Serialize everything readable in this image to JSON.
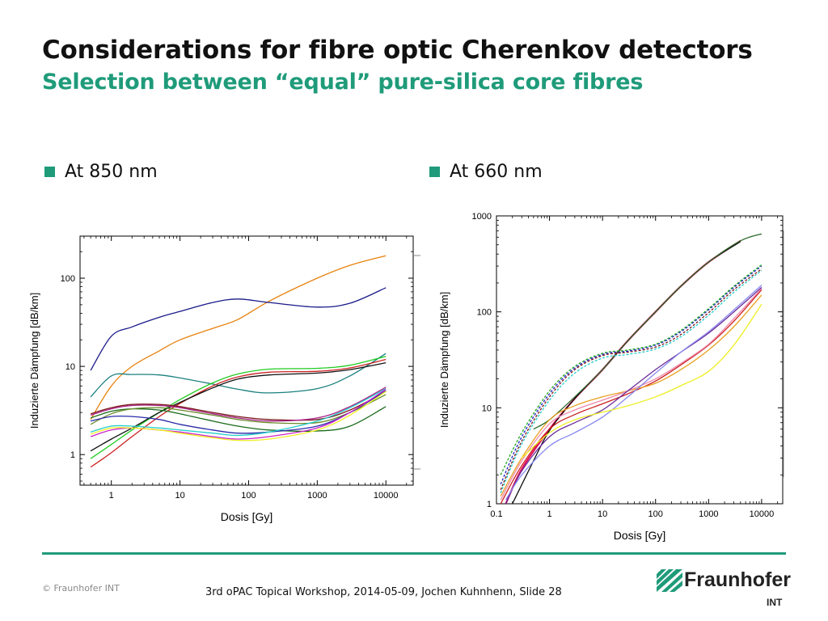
{
  "slide": {
    "title": "Considerations for fibre optic Cherenkov detectors",
    "subtitle": "Selection between “equal” pure-silica core fibres",
    "bullet_left": "At 850 nm",
    "bullet_right": "At 660 nm",
    "copyright": "© Fraunhofer INT",
    "footer": "3rd oPAC Topical Workshop, 2014-05-09, Jochen Kuhnhenn, Slide 28",
    "logo_text": "Fraunhofer",
    "logo_sub": "INT",
    "accent_color": "#1f9b7a"
  },
  "chart_data": [
    {
      "type": "line",
      "xlabel": "Dosis [Gy]",
      "ylabel": "Induzierte Dämpfung [dB/km]",
      "xscale": "log",
      "yscale": "log",
      "xlim": [
        0.35,
        25000
      ],
      "ylim": [
        0.45,
        300
      ],
      "xticks": [
        "1",
        "10",
        "100",
        "1000",
        "10000"
      ],
      "yticks": [
        "1",
        "10",
        "100"
      ],
      "legend": "right, labels not legible",
      "series": [
        {
          "color": "#e8820e",
          "x": [
            0.5,
            1,
            2,
            5,
            10,
            30,
            70,
            200,
            1000,
            3000,
            10000
          ],
          "y": [
            2.5,
            6,
            10,
            15,
            20,
            27,
            34,
            55,
            100,
            140,
            180
          ]
        },
        {
          "color": "#1a1a8a",
          "x": [
            0.5,
            1,
            2,
            5,
            10,
            30,
            70,
            200,
            1000,
            3000,
            10000
          ],
          "y": [
            9,
            22,
            28,
            36,
            42,
            53,
            58,
            53,
            47,
            52,
            78
          ]
        },
        {
          "color": "#1a8080",
          "x": [
            0.5,
            1,
            2,
            5,
            10,
            30,
            70,
            200,
            1000,
            3000,
            10000
          ],
          "y": [
            4.5,
            7.8,
            8.1,
            8,
            7.4,
            6.3,
            5.5,
            5,
            5.6,
            7.8,
            14
          ]
        },
        {
          "color": "#22cc22",
          "x": [
            0.5,
            1,
            2,
            5,
            10,
            30,
            70,
            200,
            1000,
            3000,
            10000
          ],
          "y": [
            0.9,
            1.3,
            1.9,
            3,
            4.2,
            6.5,
            8.2,
            9.3,
            9.5,
            10.3,
            13
          ]
        },
        {
          "color": "#cc2020",
          "x": [
            0.5,
            1,
            2,
            5,
            10,
            30,
            70,
            200,
            1000,
            3000,
            10000
          ],
          "y": [
            0.72,
            1.05,
            1.6,
            2.7,
            3.8,
            6,
            7.6,
            8.6,
            8.8,
            9.6,
            12
          ]
        },
        {
          "color": "#111111",
          "x": [
            0.5,
            1,
            2,
            5,
            10,
            30,
            70,
            200,
            1000,
            3000,
            10000
          ],
          "y": [
            1.1,
            1.5,
            2,
            3,
            3.9,
            5.7,
            7.2,
            8,
            8.4,
            9.2,
            11
          ]
        },
        {
          "color": "#7a1a1a",
          "x": [
            0.5,
            1,
            2,
            5,
            10,
            30,
            70,
            200,
            1000,
            3000,
            10000
          ],
          "y": [
            2.9,
            3.4,
            3.7,
            3.7,
            3.5,
            3,
            2.7,
            2.5,
            2.5,
            3.2,
            5.2
          ]
        },
        {
          "color": "#aa2288",
          "x": [
            0.5,
            1,
            2,
            5,
            10,
            30,
            70,
            200,
            1000,
            3000,
            10000
          ],
          "y": [
            2.8,
            3.3,
            3.6,
            3.6,
            3.4,
            2.9,
            2.6,
            2.4,
            2.6,
            3.5,
            5.8
          ]
        },
        {
          "color": "#1a6a1a",
          "x": [
            0.5,
            1,
            2,
            5,
            10,
            30,
            70,
            200,
            1000,
            3000,
            10000
          ],
          "y": [
            2.6,
            3.1,
            3.3,
            3.2,
            2.9,
            2.4,
            2.1,
            1.9,
            1.85,
            2.1,
            3.5
          ]
        },
        {
          "color": "#6a8a2a",
          "x": [
            0.5,
            1,
            2,
            5,
            10,
            30,
            70,
            200,
            1000,
            3000,
            10000
          ],
          "y": [
            2.2,
            2.9,
            3.3,
            3.4,
            3.2,
            2.8,
            2.5,
            2.3,
            2.3,
            3,
            4.8
          ]
        },
        {
          "color": "#2a2aaa",
          "x": [
            0.5,
            1,
            2,
            5,
            10,
            30,
            70,
            200,
            1000,
            3000,
            10000
          ],
          "y": [
            2.4,
            2.7,
            2.7,
            2.5,
            2.2,
            1.9,
            1.75,
            1.8,
            2.1,
            3,
            5.3
          ]
        },
        {
          "color": "#22cccc",
          "x": [
            0.5,
            1,
            2,
            5,
            10,
            30,
            70,
            200,
            1000,
            3000,
            10000
          ],
          "y": [
            1.8,
            2.1,
            2.1,
            2,
            1.9,
            1.75,
            1.65,
            1.8,
            2.4,
            3.4,
            5.6
          ]
        },
        {
          "color": "#cc22cc",
          "x": [
            0.5,
            1,
            2,
            5,
            10,
            30,
            70,
            200,
            1000,
            3000,
            10000
          ],
          "y": [
            1.6,
            1.9,
            2,
            1.9,
            1.8,
            1.6,
            1.5,
            1.6,
            2,
            3,
            5.5
          ]
        },
        {
          "color": "#eeee22",
          "x": [
            0.5,
            1,
            2,
            5,
            10,
            30,
            70,
            200,
            1000,
            3000,
            10000
          ],
          "y": [
            1.7,
            2,
            2,
            1.9,
            1.75,
            1.55,
            1.45,
            1.5,
            1.9,
            2.8,
            5.2
          ]
        }
      ]
    },
    {
      "type": "line",
      "xlabel": "Dosis [Gy]",
      "ylabel": "Induzierte Dämpfung [dB/km]",
      "xscale": "log",
      "yscale": "log",
      "xlim": [
        0.1,
        25000
      ],
      "ylim": [
        1,
        1000
      ],
      "xticks": [
        "0.1",
        "1",
        "10",
        "100",
        "1000",
        "10000"
      ],
      "yticks": [
        "1",
        "10",
        "100",
        "1000"
      ],
      "series": [
        {
          "color": "#e0105a",
          "x": [
            0.15,
            0.3,
            1,
            3,
            10,
            30,
            100,
            300,
            1000,
            4000
          ],
          "y": [
            1,
            2.3,
            6,
            12.5,
            25,
            50,
            100,
            185,
            330,
            550
          ]
        },
        {
          "color": "#111111",
          "x": [
            0.2,
            0.5,
            1,
            3,
            10,
            30,
            100,
            300,
            1000,
            4000
          ],
          "y": [
            1,
            2.8,
            5.8,
            12.5,
            25,
            50,
            100,
            185,
            330,
            540
          ]
        },
        {
          "color": "#2a6a2a",
          "x": [
            0.5,
            1,
            3,
            10,
            30,
            100,
            300,
            1000,
            4000,
            10000
          ],
          "y": [
            6,
            7.5,
            13,
            25,
            50,
            100,
            185,
            330,
            550,
            650
          ]
        },
        {
          "color": "#2222cc",
          "dash": true,
          "x": [
            0.12,
            0.3,
            1,
            3,
            10,
            30,
            100,
            300,
            1000,
            3000,
            10000
          ],
          "y": [
            1.6,
            5,
            14,
            26,
            36,
            39,
            45,
            62,
            105,
            180,
            300
          ]
        },
        {
          "color": "#7a1a1a",
          "dash": true,
          "x": [
            0.12,
            0.3,
            1,
            3,
            10,
            30,
            100,
            300,
            1000,
            3000,
            10000
          ],
          "y": [
            1.4,
            4.5,
            13,
            25,
            35,
            38,
            43,
            58,
            98,
            170,
            280
          ]
        },
        {
          "color": "#22aa22",
          "dash": true,
          "x": [
            0.12,
            0.3,
            1,
            3,
            10,
            30,
            100,
            300,
            1000,
            3000,
            10000
          ],
          "y": [
            2,
            5.5,
            15,
            27,
            37,
            40,
            46,
            64,
            108,
            185,
            310
          ]
        },
        {
          "color": "#22cccc",
          "dash": true,
          "x": [
            0.12,
            0.3,
            1,
            3,
            10,
            30,
            100,
            300,
            1000,
            3000,
            10000
          ],
          "y": [
            1.3,
            4.2,
            12,
            23,
            33,
            36,
            41,
            55,
            92,
            160,
            270
          ]
        },
        {
          "color": "#cc2020",
          "x": [
            0.12,
            0.3,
            1,
            3,
            10,
            30,
            100,
            300,
            1000,
            3000,
            10000
          ],
          "y": [
            1,
            2.5,
            6,
            8.5,
            11,
            14,
            19,
            28,
            45,
            80,
            170
          ]
        },
        {
          "color": "#e8a020",
          "x": [
            0.12,
            0.3,
            1,
            3,
            10,
            30,
            100,
            300,
            1000,
            3000,
            10000
          ],
          "y": [
            1.2,
            3,
            7.5,
            10.5,
            13,
            15,
            18,
            25,
            40,
            70,
            150
          ]
        },
        {
          "color": "#ee88aa",
          "x": [
            0.12,
            0.3,
            1,
            3,
            10,
            30,
            100,
            300,
            1000,
            3000,
            10000
          ],
          "y": [
            1.1,
            2.8,
            6.8,
            9.5,
            12,
            15,
            20,
            29,
            46,
            85,
            175
          ]
        },
        {
          "color": "#6a2a9a",
          "x": [
            0.15,
            0.3,
            1,
            3,
            10,
            30,
            100,
            300,
            1000,
            3000,
            10000
          ],
          "y": [
            1,
            2.2,
            5,
            7,
            9.5,
            15,
            25,
            38,
            60,
            100,
            180
          ]
        },
        {
          "color": "#8888ee",
          "x": [
            0.15,
            0.3,
            1,
            3,
            10,
            30,
            100,
            300,
            1000,
            3000,
            10000
          ],
          "y": [
            1.1,
            2,
            4,
            5.5,
            8,
            13,
            23,
            38,
            62,
            105,
            190
          ]
        },
        {
          "color": "#eeee22",
          "x": [
            0.3,
            1,
            3,
            10,
            30,
            100,
            300,
            1000,
            3000,
            10000
          ],
          "y": [
            3,
            5.5,
            7.5,
            9,
            10.5,
            13,
            17,
            24,
            45,
            120
          ]
        }
      ]
    }
  ]
}
